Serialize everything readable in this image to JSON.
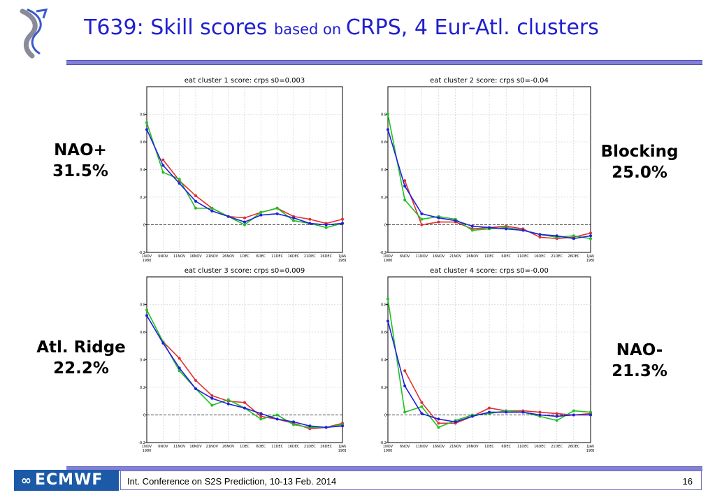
{
  "title": {
    "part1": "T639: Skill scores ",
    "part2": "based on ",
    "part3": "CRPS,  4 Eur-Atl.  clusters"
  },
  "labels": {
    "c1": {
      "name": "NAO+",
      "pct": "31.5%"
    },
    "c2": {
      "name": "Blocking",
      "pct": "25.0%"
    },
    "c3": {
      "name": "Atl. Ridge",
      "pct": "22.2%"
    },
    "c4": {
      "name": "NAO-",
      "pct": "21.3%"
    }
  },
  "footer": {
    "logo": "ECMWF",
    "text": "Int. Conference on S2S Prediction, 10-13 Feb. 2014",
    "page": "16"
  },
  "colors": {
    "title": "#1f1fd0",
    "red": "#e03030",
    "green": "#22c022",
    "blue": "#2020e0",
    "rule": "#8080d8"
  },
  "chart_data": [
    {
      "type": "line",
      "title": "eat cluster 1   score: crps    s0=0.003",
      "x": [
        "1NOV 1980",
        "6NOV",
        "11NOV",
        "16NOV",
        "21NOV",
        "26NOV",
        "1DEC",
        "6DEC",
        "11DEC",
        "16DEC",
        "21DEC",
        "26DEC",
        "1JAN 1981"
      ],
      "ylim": [
        -0.2,
        1.0
      ],
      "yticks": [
        "-0.2",
        "0",
        "0.2",
        "0.4",
        "0.6",
        "0.8"
      ],
      "series": [
        {
          "color": "red",
          "points": [
            [
              1,
              0.47
            ],
            [
              2,
              0.32
            ],
            [
              3,
              0.21
            ],
            [
              4,
              0.12
            ],
            [
              5,
              0.06
            ],
            [
              6,
              0.05
            ],
            [
              7,
              0.09
            ],
            [
              8,
              0.12
            ],
            [
              9,
              0.06
            ],
            [
              10,
              0.04
            ],
            [
              11,
              0.01
            ],
            [
              12,
              0.04
            ]
          ]
        },
        {
          "color": "green",
          "points": [
            [
              0,
              0.74
            ],
            [
              1,
              0.38
            ],
            [
              2,
              0.33
            ],
            [
              3,
              0.12
            ],
            [
              4,
              0.12
            ],
            [
              5,
              0.06
            ],
            [
              6,
              0.0
            ],
            [
              7,
              0.09
            ],
            [
              8,
              0.12
            ],
            [
              9,
              0.03
            ],
            [
              10,
              0.01
            ],
            [
              11,
              -0.02
            ],
            [
              12,
              0.01
            ]
          ]
        },
        {
          "color": "blue",
          "points": [
            [
              0,
              0.69
            ],
            [
              1,
              0.43
            ],
            [
              2,
              0.3
            ],
            [
              3,
              0.17
            ],
            [
              4,
              0.1
            ],
            [
              5,
              0.06
            ],
            [
              6,
              0.02
            ],
            [
              7,
              0.07
            ],
            [
              8,
              0.08
            ],
            [
              9,
              0.05
            ],
            [
              10,
              0.01
            ],
            [
              11,
              0.0
            ],
            [
              12,
              0.01
            ]
          ]
        }
      ]
    },
    {
      "type": "line",
      "title": "eat cluster 2   score: crps    s0=-0.04",
      "x": [
        "1NOV 1980",
        "6NOV",
        "11NOV",
        "16NOV",
        "21NOV",
        "26NOV",
        "1DEC",
        "6DEC",
        "11DEC",
        "16DEC",
        "21DEC",
        "26DEC",
        "1JAN 1981"
      ],
      "ylim": [
        -0.2,
        1.0
      ],
      "yticks": [
        "-0.2",
        "0",
        "0.2",
        "0.4",
        "0.6",
        "0.8"
      ],
      "series": [
        {
          "color": "red",
          "points": [
            [
              1,
              0.32
            ],
            [
              2,
              0.0
            ],
            [
              3,
              0.02
            ],
            [
              4,
              0.02
            ],
            [
              5,
              -0.03
            ],
            [
              6,
              -0.02
            ],
            [
              7,
              -0.01
            ],
            [
              8,
              -0.03
            ],
            [
              9,
              -0.09
            ],
            [
              10,
              -0.1
            ],
            [
              11,
              -0.09
            ],
            [
              12,
              -0.06
            ]
          ]
        },
        {
          "color": "green",
          "points": [
            [
              0,
              0.8
            ],
            [
              1,
              0.18
            ],
            [
              2,
              0.04
            ],
            [
              3,
              0.06
            ],
            [
              4,
              0.04
            ],
            [
              5,
              -0.04
            ],
            [
              6,
              -0.03
            ],
            [
              7,
              -0.02
            ],
            [
              8,
              -0.04
            ],
            [
              9,
              -0.07
            ],
            [
              10,
              -0.09
            ],
            [
              11,
              -0.08
            ],
            [
              12,
              -0.1
            ]
          ]
        },
        {
          "color": "blue",
          "points": [
            [
              0,
              0.69
            ],
            [
              1,
              0.28
            ],
            [
              2,
              0.08
            ],
            [
              3,
              0.05
            ],
            [
              4,
              0.03
            ],
            [
              5,
              -0.01
            ],
            [
              6,
              -0.02
            ],
            [
              7,
              -0.03
            ],
            [
              8,
              -0.04
            ],
            [
              9,
              -0.07
            ],
            [
              10,
              -0.08
            ],
            [
              11,
              -0.1
            ],
            [
              12,
              -0.08
            ]
          ]
        }
      ]
    },
    {
      "type": "line",
      "title": "eat cluster 3   score: crps    s0=0.009",
      "x": [
        "1NOV 1980",
        "6NOV",
        "11NOV",
        "16NOV",
        "21NOV",
        "26NOV",
        "1DEC",
        "6DEC",
        "11DEC",
        "16DEC",
        "21DEC",
        "26DEC",
        "1JAN 1981"
      ],
      "ylim": [
        -0.2,
        1.0
      ],
      "yticks": [
        "-0.2",
        "0",
        "0.2",
        "0.4",
        "0.6",
        "0.8"
      ],
      "series": [
        {
          "color": "red",
          "points": [
            [
              1,
              0.53
            ],
            [
              2,
              0.41
            ],
            [
              3,
              0.25
            ],
            [
              4,
              0.14
            ],
            [
              5,
              0.1
            ],
            [
              6,
              0.09
            ],
            [
              7,
              -0.01
            ],
            [
              8,
              -0.03
            ],
            [
              9,
              -0.06
            ],
            [
              10,
              -0.1
            ],
            [
              11,
              -0.09
            ],
            [
              12,
              -0.06
            ]
          ]
        },
        {
          "color": "green",
          "points": [
            [
              0,
              0.76
            ],
            [
              1,
              0.53
            ],
            [
              2,
              0.32
            ],
            [
              3,
              0.19
            ],
            [
              4,
              0.07
            ],
            [
              5,
              0.11
            ],
            [
              6,
              0.05
            ],
            [
              7,
              -0.03
            ],
            [
              8,
              0.0
            ],
            [
              9,
              -0.07
            ],
            [
              10,
              -0.09
            ],
            [
              11,
              -0.09
            ],
            [
              12,
              -0.07
            ]
          ]
        },
        {
          "color": "blue",
          "points": [
            [
              0,
              0.72
            ],
            [
              1,
              0.52
            ],
            [
              2,
              0.34
            ],
            [
              3,
              0.19
            ],
            [
              4,
              0.12
            ],
            [
              5,
              0.08
            ],
            [
              6,
              0.05
            ],
            [
              7,
              0.01
            ],
            [
              8,
              -0.03
            ],
            [
              9,
              -0.05
            ],
            [
              10,
              -0.08
            ],
            [
              11,
              -0.09
            ],
            [
              12,
              -0.08
            ]
          ]
        }
      ]
    },
    {
      "type": "line",
      "title": "eat cluster 4   score: crps    s0=-0.00",
      "x": [
        "1NOV 1980",
        "6NOV",
        "11NOV",
        "16NOV",
        "21NOV",
        "26NOV",
        "1DEC",
        "6DEC",
        "11DEC",
        "16DEC",
        "21DEC",
        "26DEC",
        "1JAN 1981"
      ],
      "ylim": [
        -0.2,
        1.0
      ],
      "yticks": [
        "-0.2",
        "0",
        "0.2",
        "0.4",
        "0.6",
        "0.8"
      ],
      "series": [
        {
          "color": "red",
          "points": [
            [
              1,
              0.32
            ],
            [
              2,
              0.09
            ],
            [
              3,
              -0.06
            ],
            [
              4,
              -0.06
            ],
            [
              5,
              -0.01
            ],
            [
              6,
              0.05
            ],
            [
              7,
              0.03
            ],
            [
              8,
              0.03
            ],
            [
              9,
              0.02
            ],
            [
              10,
              0.01
            ],
            [
              11,
              0.0
            ],
            [
              12,
              0.01
            ]
          ]
        },
        {
          "color": "green",
          "points": [
            [
              0,
              0.84
            ],
            [
              1,
              0.02
            ],
            [
              2,
              0.06
            ],
            [
              3,
              -0.09
            ],
            [
              4,
              -0.04
            ],
            [
              5,
              0.0
            ],
            [
              6,
              0.01
            ],
            [
              7,
              0.03
            ],
            [
              8,
              0.02
            ],
            [
              9,
              -0.01
            ],
            [
              10,
              -0.04
            ],
            [
              11,
              0.03
            ],
            [
              12,
              0.02
            ]
          ]
        },
        {
          "color": "blue",
          "points": [
            [
              0,
              0.68
            ],
            [
              1,
              0.21
            ],
            [
              2,
              0.01
            ],
            [
              3,
              -0.03
            ],
            [
              4,
              -0.05
            ],
            [
              5,
              -0.01
            ],
            [
              6,
              0.02
            ],
            [
              7,
              0.02
            ],
            [
              8,
              0.02
            ],
            [
              9,
              0.0
            ],
            [
              10,
              -0.01
            ],
            [
              11,
              0.0
            ],
            [
              12,
              0.0
            ]
          ]
        }
      ]
    }
  ]
}
